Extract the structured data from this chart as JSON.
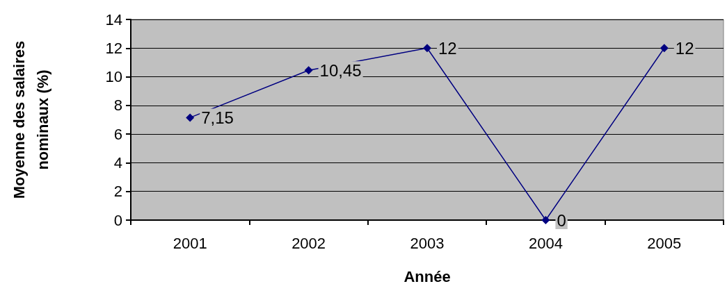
{
  "chart_data": {
    "type": "line",
    "xlabel": "Année",
    "ylabel": "Moyenne des salaires\nnominaux (%)",
    "categories": [
      "2001",
      "2002",
      "2003",
      "2004",
      "2005"
    ],
    "series": [
      {
        "color": "#000080",
        "values": [
          7.15,
          10.45,
          12,
          0,
          12
        ],
        "value_labels": [
          "7,15",
          "10,45",
          "12",
          "0",
          "12"
        ]
      }
    ],
    "ylim": [
      0,
      14
    ],
    "yticks": [
      0,
      2,
      4,
      6,
      8,
      10,
      12,
      14
    ],
    "grid": "y",
    "marker": "diamond",
    "line_style": "solid"
  }
}
